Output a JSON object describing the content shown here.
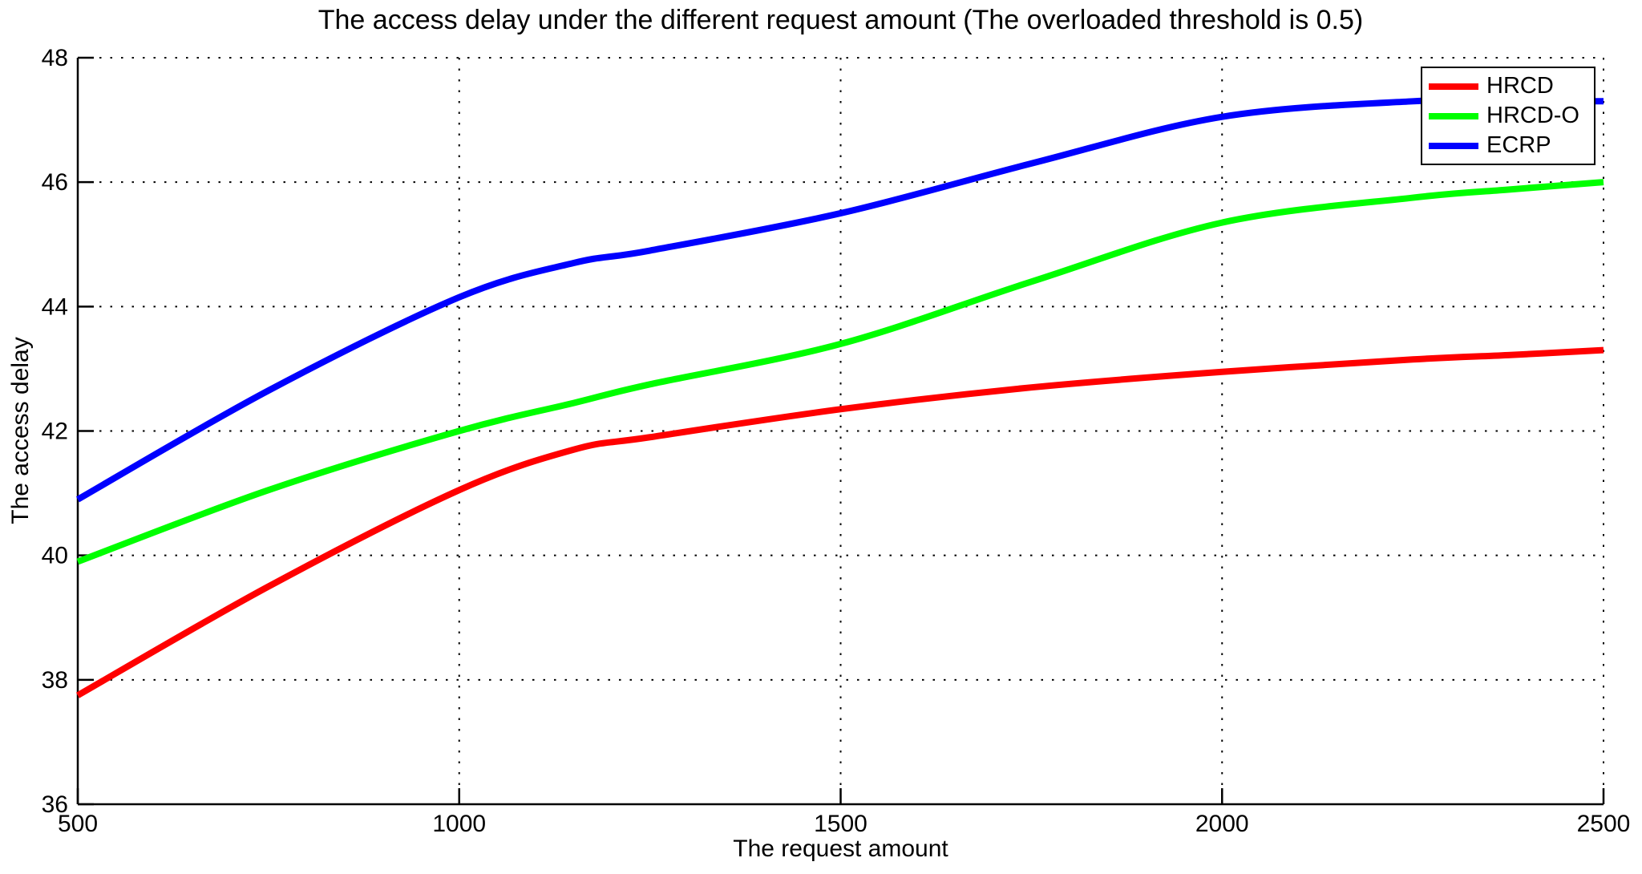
{
  "figure": {
    "background": "#ffffff",
    "axis_color": "#000000",
    "grid_style": "dotted"
  },
  "chart_data": {
    "type": "line",
    "title": "The access delay under the different request amount (The overloaded threshold is 0.5)",
    "xlabel": "The request amount",
    "ylabel": "The access delay",
    "xlim": [
      500,
      2500
    ],
    "ylim": [
      36,
      48
    ],
    "x_ticks": [
      500,
      1000,
      1500,
      2000,
      2500
    ],
    "y_ticks": [
      36,
      38,
      40,
      42,
      44,
      46,
      48
    ],
    "grid": "on",
    "legend_position": "top-right",
    "x": [
      500,
      750,
      1000,
      1150,
      1250,
      1500,
      1750,
      2000,
      2250,
      2375,
      2500
    ],
    "series": [
      {
        "name": "HRCD",
        "color": "#ff0000",
        "values": [
          37.75,
          39.5,
          41.05,
          41.7,
          41.9,
          42.35,
          42.7,
          42.95,
          43.15,
          43.22,
          43.3
        ]
      },
      {
        "name": "HRCD-O",
        "color": "#00ff00",
        "values": [
          39.9,
          41.05,
          42.0,
          42.45,
          42.75,
          43.4,
          44.4,
          45.35,
          45.75,
          45.88,
          46.0
        ]
      },
      {
        "name": "ECRP",
        "color": "#0000ff",
        "values": [
          40.9,
          42.65,
          44.15,
          44.7,
          44.9,
          45.5,
          46.3,
          47.05,
          47.3,
          47.3,
          47.3
        ]
      }
    ]
  }
}
